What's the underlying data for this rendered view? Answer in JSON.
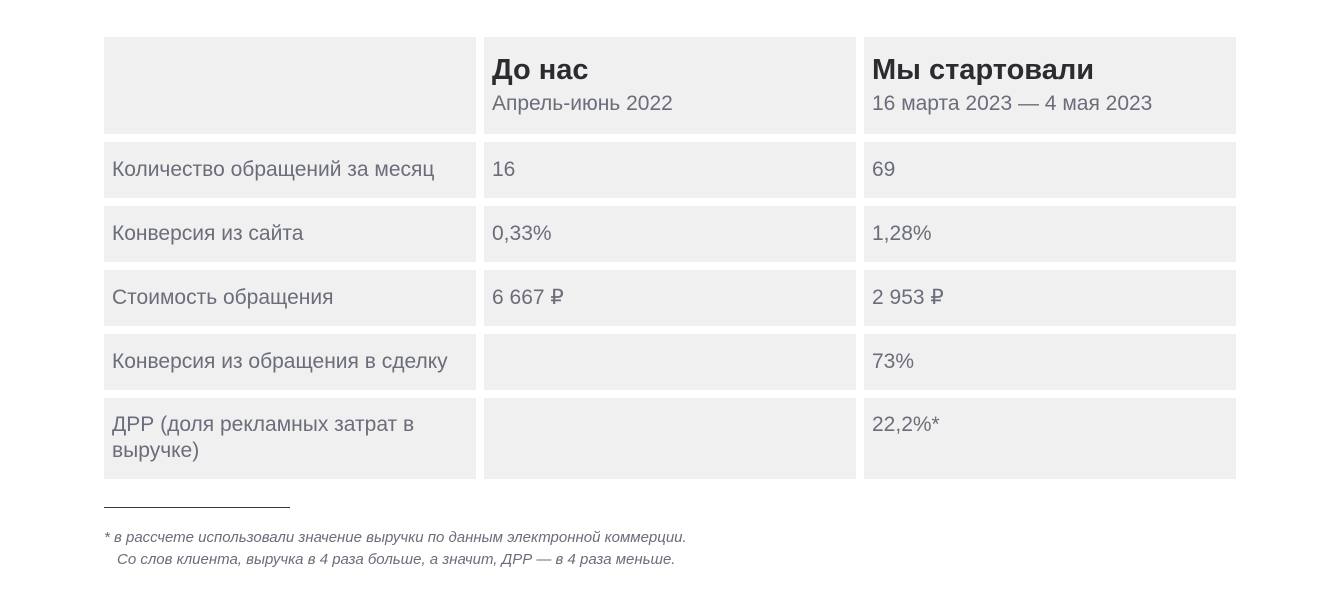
{
  "table": {
    "header": {
      "col1_title": "До нас",
      "col1_period": "Апрель-июнь 2022",
      "col2_title": "Мы стартовали",
      "col2_period": "16 марта 2023 — 4 мая 2023"
    },
    "rows": [
      {
        "label": "Количество обращений за месяц",
        "before": "16",
        "after": "69"
      },
      {
        "label": "Конверсия из сайта",
        "before": "0,33%",
        "after": "1,28%"
      },
      {
        "label": "Стоимость обращения",
        "before": "6 667 ₽",
        "after": "2 953 ₽"
      },
      {
        "label": "Конверсия из обращения в сделку",
        "before": "",
        "after": "73%"
      },
      {
        "label": "ДРР (доля рекламных затрат в выручке)",
        "before": "",
        "after": "22,2%*"
      }
    ]
  },
  "footnote": {
    "line1": "* в рассчете использовали значение выручки по данным электронной коммерции.",
    "line2": "Со слов клиента, выручка  в 4 раза больше, а значит, ДРР — в 4 раза меньше."
  },
  "colors": {
    "cell_background": "#f0f0f0",
    "heading_text": "#2b2b30",
    "body_text": "#6b6d7a"
  }
}
